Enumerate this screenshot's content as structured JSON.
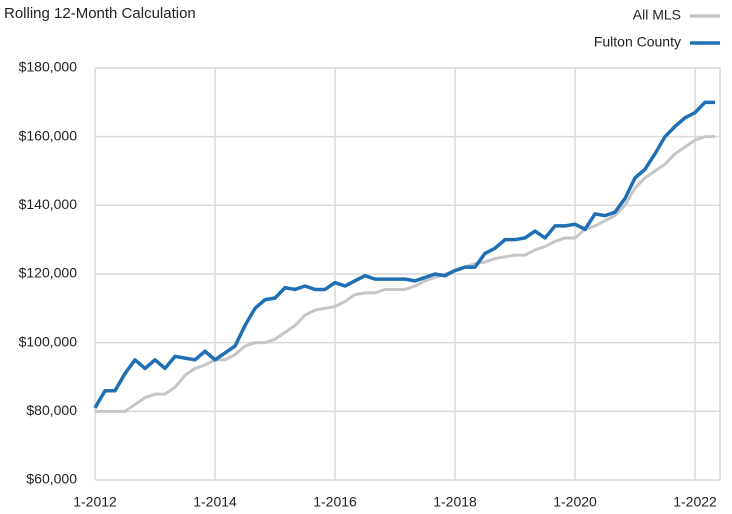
{
  "chart_data": {
    "type": "line",
    "subtitle": "Rolling 12-Month Calculation",
    "categories": [
      "1-2012",
      null,
      null,
      null,
      null,
      null,
      null,
      null,
      null,
      null,
      null,
      null,
      "1-2014",
      null,
      null,
      null,
      null,
      null,
      null,
      null,
      null,
      null,
      null,
      null,
      "1-2016",
      null,
      null,
      null,
      null,
      null,
      null,
      null,
      null,
      null,
      null,
      null,
      "1-2018",
      null,
      null,
      null,
      null,
      null,
      null,
      null,
      null,
      null,
      null,
      null,
      "1-2020",
      null,
      null,
      null,
      null,
      null,
      null,
      null,
      null,
      null,
      null,
      null,
      "1-2022",
      null,
      null
    ],
    "series": [
      {
        "name": "All MLS",
        "color": "#c6c6c6",
        "values": [
          80000,
          80000,
          80000,
          80000,
          82000,
          84000,
          85000,
          85000,
          87000,
          90500,
          92500,
          93500,
          95000,
          95000,
          96500,
          99000,
          100000,
          100000,
          101000,
          103000,
          105000,
          108000,
          109500,
          110000,
          110500,
          112000,
          114000,
          114500,
          114500,
          115500,
          115500,
          115500,
          116500,
          118000,
          119000,
          120000,
          121000,
          122000,
          123000,
          123500,
          124500,
          125000,
          125500,
          125500,
          127000,
          128000,
          129500,
          130500,
          130500,
          133000,
          134000,
          135500,
          137000,
          140000,
          145000,
          148000,
          150000,
          152000,
          155000,
          157000,
          159000,
          160000,
          160000
        ]
      },
      {
        "name": "Fulton County",
        "color": "#1f6fb5",
        "values": [
          81000,
          86000,
          86000,
          91000,
          95000,
          92500,
          95000,
          92500,
          96000,
          95500,
          95000,
          97500,
          95000,
          97000,
          99000,
          105000,
          110000,
          112500,
          113000,
          116000,
          115500,
          116500,
          115500,
          115500,
          117500,
          116500,
          118000,
          119500,
          118500,
          118500,
          118500,
          118500,
          118000,
          119000,
          120000,
          119500,
          121000,
          122000,
          122000,
          126000,
          127500,
          130000,
          130000,
          130500,
          132500,
          130500,
          134000,
          134000,
          134500,
          133000,
          137500,
          137000,
          138000,
          142000,
          148000,
          150500,
          155000,
          160000,
          163000,
          165500,
          167000,
          170000,
          170000
        ]
      }
    ],
    "ylim": [
      60000,
      180000
    ],
    "yticks": [
      {
        "value": 60000,
        "label": "$60,000"
      },
      {
        "value": 80000,
        "label": "$80,000"
      },
      {
        "value": 100000,
        "label": "$100,000"
      },
      {
        "value": 120000,
        "label": "$120,000"
      },
      {
        "value": 140000,
        "label": "$140,000"
      },
      {
        "value": 160000,
        "label": "$160,000"
      },
      {
        "value": 180000,
        "label": "$180,000"
      }
    ],
    "grid": true,
    "legend": "top-right"
  }
}
